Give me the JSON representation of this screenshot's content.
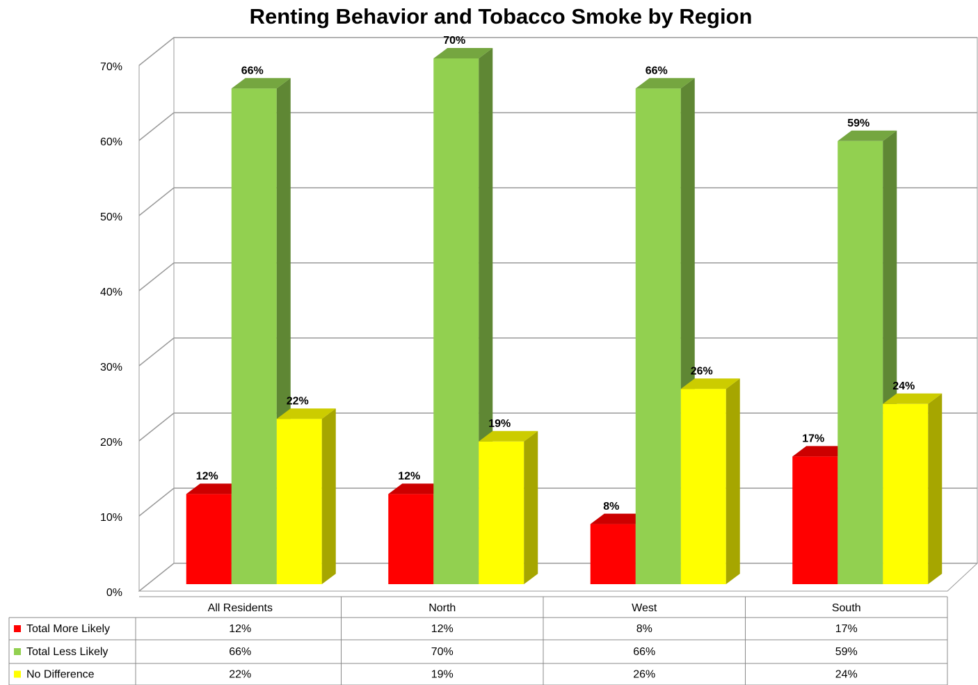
{
  "chart_data": {
    "type": "bar3d",
    "title": "Renting Behavior and Tobacco Smoke by Region",
    "categories": [
      "All Residents",
      "North",
      "West",
      "South"
    ],
    "series": [
      {
        "name": "Total More Likely",
        "color": "#ff0000",
        "values": [
          12,
          12,
          8,
          17
        ],
        "value_labels": [
          "12%",
          "12%",
          "8%",
          "17%"
        ]
      },
      {
        "name": "Total Less Likely",
        "color": "#92d050",
        "values": [
          66,
          70,
          66,
          59
        ],
        "value_labels": [
          "66%",
          "70%",
          "66%",
          "59%"
        ]
      },
      {
        "name": "No Difference",
        "color": "#ffff00",
        "values": [
          22,
          19,
          26,
          24
        ],
        "value_labels": [
          "22%",
          "19%",
          "26%",
          "24%"
        ]
      }
    ],
    "ylim": [
      0,
      70
    ],
    "yticks": [
      {
        "value": 0,
        "label": "0%"
      },
      {
        "value": 10,
        "label": "10%"
      },
      {
        "value": 20,
        "label": "20%"
      },
      {
        "value": 30,
        "label": "30%"
      },
      {
        "value": 40,
        "label": "40%"
      },
      {
        "value": 50,
        "label": "50%"
      },
      {
        "value": 60,
        "label": "60%"
      },
      {
        "value": 70,
        "label": "70%"
      }
    ],
    "grid": true,
    "data_table": true
  }
}
